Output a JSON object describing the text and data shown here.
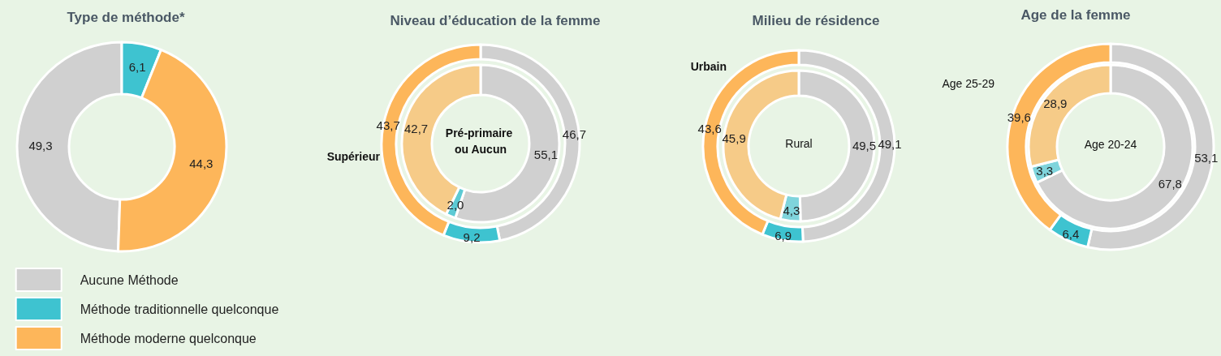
{
  "chart_data": [
    {
      "type": "donut",
      "title": "Type de méthode*",
      "categories": [
        "Aucune Méthode",
        "Méthode traditionnelle quelconque",
        "Méthode moderne quelconque"
      ],
      "values": [
        49.3,
        6.1,
        44.3
      ],
      "value_labels": [
        "49,3",
        "6,1",
        "44,3"
      ],
      "colors": [
        "#d0d0d0",
        "#3ec3d0",
        "#fdb65a"
      ],
      "legend": "bottom"
    },
    {
      "type": "donut",
      "title": "Niveau d’éducation de la femme",
      "categories": [
        null,
        null,
        null
      ],
      "series": [
        {
          "name": "Supérieur",
          "colors": [
            "#d0d0d0",
            "#3ec3d0",
            "#fdb65a"
          ],
          "values": [
            46.7,
            9.2,
            43.7
          ],
          "value_labels": [
            "46,7",
            "9,2",
            "43,7"
          ]
        },
        {
          "name": "Pré-primaire ou Aucun",
          "colors": [
            "#d0d0d0",
            "#5ccad4",
            "#f6cb88"
          ],
          "values": [
            55.1,
            2.0,
            42.7
          ],
          "value_labels": [
            "55,1",
            "2,0",
            "42,7"
          ]
        }
      ]
    },
    {
      "type": "donut",
      "title": "Milieu de résidence",
      "categories": [
        null,
        null,
        null
      ],
      "series": [
        {
          "name": "Urbain",
          "colors": [
            "#d0d0d0",
            "#3ec3d0",
            "#fdb65a"
          ],
          "values": [
            49.1,
            6.9,
            43.6
          ],
          "value_labels": [
            "49,1",
            "6,9",
            "43,6"
          ]
        },
        {
          "name": "Rural",
          "colors": [
            "#d0d0d0",
            "#7fd4dc",
            "#f6cb88"
          ],
          "values": [
            49.5,
            4.3,
            45.9
          ],
          "value_labels": [
            "49,5",
            "4,3",
            "45,9"
          ]
        }
      ]
    },
    {
      "type": "donut",
      "title": "Age de la femme",
      "categories": [
        null,
        null,
        null
      ],
      "series": [
        {
          "name": "Age 25-29",
          "colors": [
            "#d0d0d0",
            "#3ec3d0",
            "#fdb65a"
          ],
          "values": [
            53.1,
            6.4,
            39.6
          ],
          "value_labels": [
            "53,1",
            "6,4",
            "39,6"
          ]
        },
        {
          "name": "Age 20-24",
          "colors": [
            "#d0d0d0",
            "#7fd4dc",
            "#f6cb88"
          ],
          "values": [
            67.8,
            3.3,
            28.9
          ],
          "value_labels": [
            "67,8",
            "3,3",
            "28,9"
          ]
        }
      ]
    }
  ]
}
